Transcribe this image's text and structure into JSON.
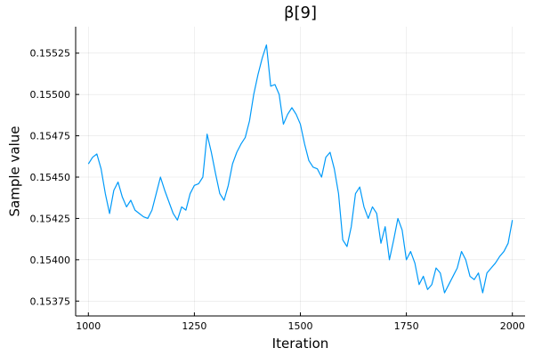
{
  "chart_data": {
    "type": "line",
    "title": "β[9]",
    "xlabel": "Iteration",
    "ylabel": "Sample value",
    "xlim": [
      970,
      2030
    ],
    "ylim": [
      0.15366,
      0.15541
    ],
    "xticks": [
      1000,
      1250,
      1500,
      1750,
      2000
    ],
    "xtick_labels": [
      "1000",
      "1250",
      "1500",
      "1750",
      "2000"
    ],
    "yticks": [
      0.15375,
      0.154,
      0.15425,
      0.1545,
      0.15475,
      0.155,
      0.15525
    ],
    "ytick_labels": [
      "0.15375",
      "0.15400",
      "0.15425",
      "0.15450",
      "0.15475",
      "0.15500",
      "0.15525"
    ],
    "grid": true,
    "legend": "none",
    "series": [
      {
        "color": "#009af9",
        "x": [
          1000,
          1010,
          1020,
          1030,
          1040,
          1050,
          1060,
          1070,
          1080,
          1090,
          1100,
          1110,
          1120,
          1130,
          1140,
          1150,
          1160,
          1170,
          1180,
          1190,
          1200,
          1210,
          1220,
          1230,
          1240,
          1250,
          1260,
          1270,
          1280,
          1290,
          1300,
          1310,
          1320,
          1330,
          1340,
          1350,
          1360,
          1370,
          1380,
          1390,
          1400,
          1410,
          1420,
          1430,
          1440,
          1450,
          1460,
          1470,
          1480,
          1490,
          1500,
          1510,
          1520,
          1530,
          1540,
          1550,
          1560,
          1570,
          1580,
          1590,
          1600,
          1610,
          1620,
          1630,
          1640,
          1650,
          1660,
          1670,
          1680,
          1690,
          1700,
          1710,
          1720,
          1730,
          1740,
          1750,
          1760,
          1770,
          1780,
          1790,
          1800,
          1810,
          1820,
          1830,
          1840,
          1850,
          1860,
          1870,
          1880,
          1890,
          1900,
          1910,
          1920,
          1930,
          1940,
          1950,
          1960,
          1970,
          1980,
          1990,
          2000
        ],
        "y": [
          0.15458,
          0.15462,
          0.15464,
          0.15455,
          0.1544,
          0.15428,
          0.15442,
          0.15447,
          0.15438,
          0.15432,
          0.15436,
          0.1543,
          0.15428,
          0.15426,
          0.15425,
          0.1543,
          0.1544,
          0.1545,
          0.15442,
          0.15435,
          0.15428,
          0.15424,
          0.15432,
          0.1543,
          0.1544,
          0.15445,
          0.15446,
          0.1545,
          0.15476,
          0.15465,
          0.15452,
          0.1544,
          0.15436,
          0.15445,
          0.15458,
          0.15465,
          0.1547,
          0.15474,
          0.15484,
          0.155,
          0.15512,
          0.15522,
          0.1553,
          0.15505,
          0.15506,
          0.155,
          0.15482,
          0.15488,
          0.15492,
          0.15488,
          0.15482,
          0.1547,
          0.1546,
          0.15456,
          0.15455,
          0.1545,
          0.15462,
          0.15465,
          0.15455,
          0.1544,
          0.15412,
          0.15408,
          0.1542,
          0.1544,
          0.15444,
          0.15432,
          0.15425,
          0.15432,
          0.15428,
          0.1541,
          0.1542,
          0.154,
          0.15412,
          0.15425,
          0.15418,
          0.154,
          0.15405,
          0.15398,
          0.15385,
          0.1539,
          0.15382,
          0.15385,
          0.15395,
          0.15392,
          0.1538,
          0.15385,
          0.1539,
          0.15395,
          0.15405,
          0.154,
          0.1539,
          0.15388,
          0.15392,
          0.1538,
          0.15392,
          0.15395,
          0.15398,
          0.15402,
          0.15405,
          0.1541,
          0.15424
        ]
      }
    ]
  }
}
